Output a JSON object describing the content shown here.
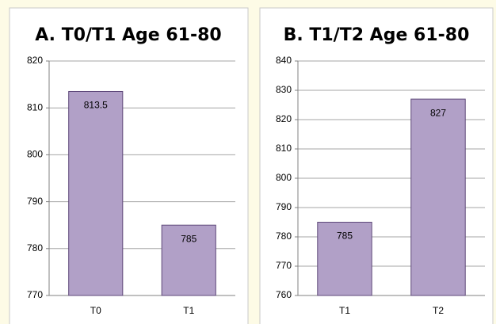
{
  "chart_data": [
    {
      "type": "bar",
      "title": "A. T0/T1 Age 61-80",
      "categories": [
        "T0",
        "T1"
      ],
      "values": [
        813.5,
        785
      ],
      "color": "#b1a0c7",
      "ylim": [
        770,
        820
      ],
      "yticks": [
        770,
        780,
        790,
        800,
        810,
        820
      ],
      "grid": true
    },
    {
      "type": "bar",
      "title": "B. T1/T2 Age 61-80",
      "categories": [
        "T1",
        "T2"
      ],
      "values": [
        785,
        827
      ],
      "color": "#b1a0c7",
      "ylim": [
        760,
        840
      ],
      "yticks": [
        760,
        770,
        780,
        790,
        800,
        810,
        820,
        830,
        840
      ],
      "grid": true
    }
  ]
}
